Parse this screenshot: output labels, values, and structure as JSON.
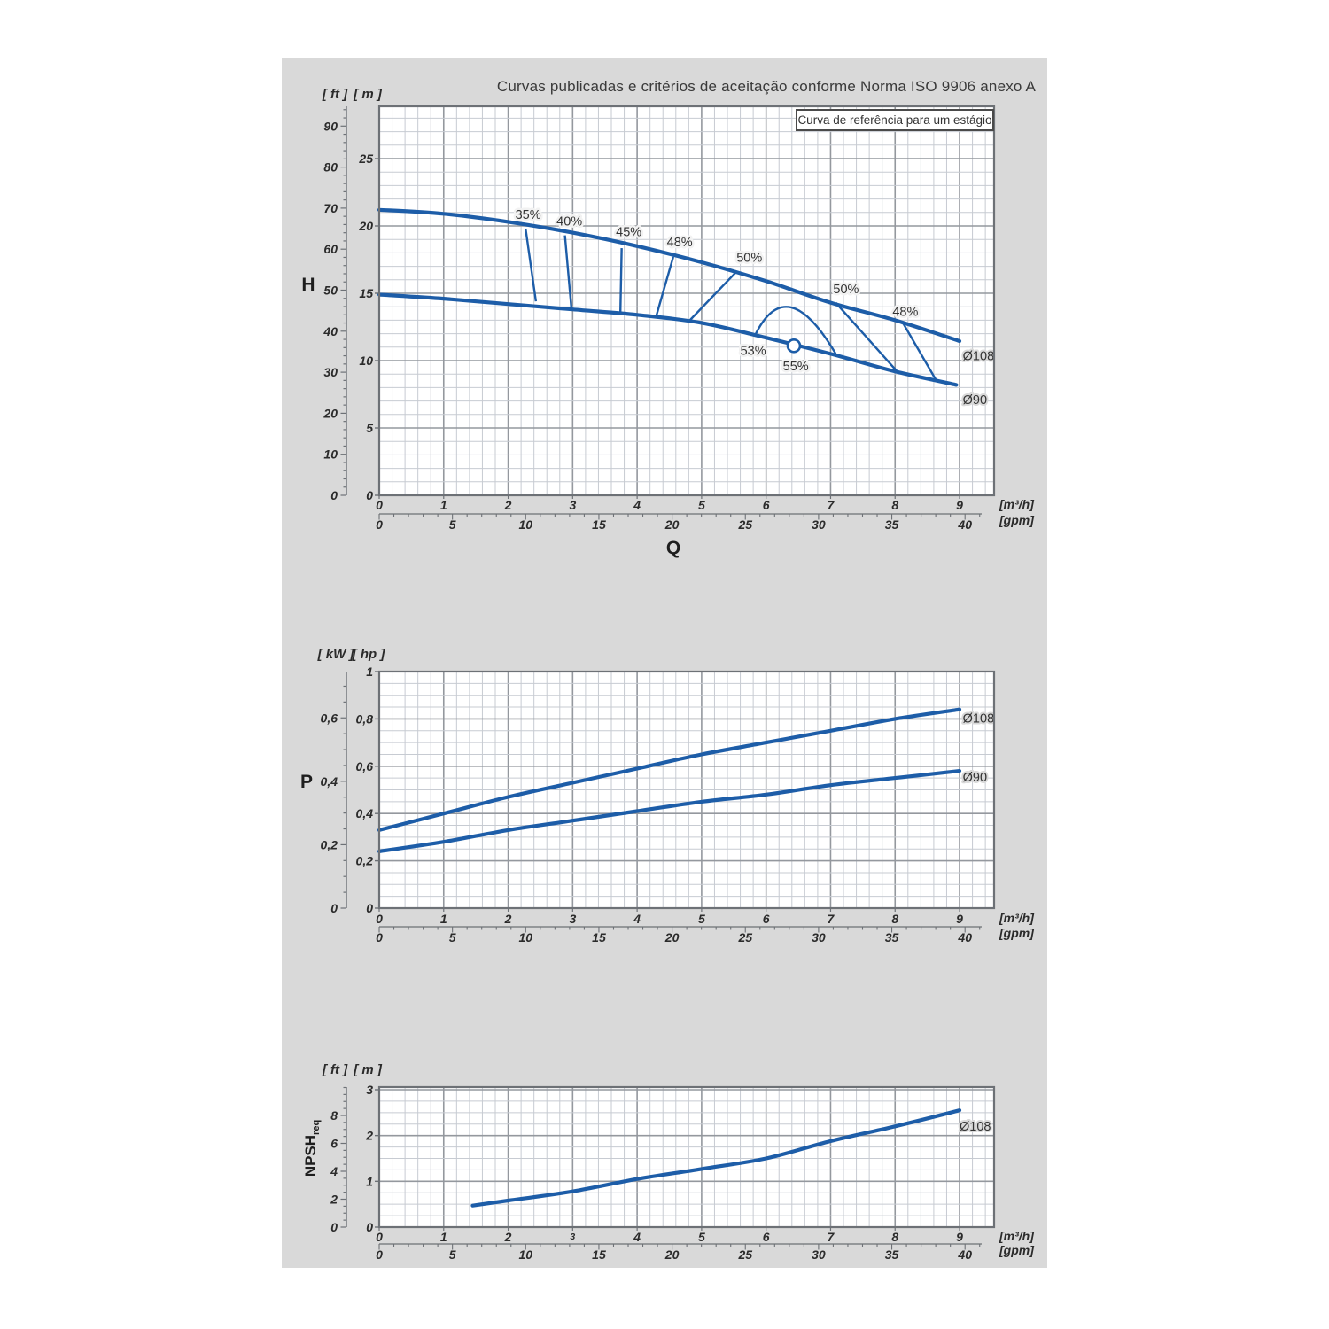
{
  "page": {
    "title": "Curvas publicadas e critérios de aceitação conforme Norma ISO 9906 anexo A",
    "legend": "Curva de referência para um estágio"
  },
  "labels": {
    "head_axis": "H",
    "power_axis": "P",
    "flow_axis": "Q",
    "npsh_main": "NPSH",
    "npsh_sub": "req",
    "head_unit_outer": "[ ft ]",
    "head_unit_inner": "[ m ]",
    "power_unit_outer": "[ kW ]",
    "power_unit_inner": "[ hp ]",
    "npsh_unit_outer": "[ ft ]",
    "npsh_unit_inner": "[ m ]"
  },
  "colors": {
    "curve": "#1d5da8",
    "grid_minor": "#c7cbd2",
    "grid_major": "#94989e",
    "border": "#6d7176",
    "axis": "#6d7176",
    "panel_bg": "#d9d9d9",
    "plot_bg": "#ffffff",
    "text": "#2b2b2b"
  },
  "x_axis": {
    "m3h_unit": "[m³/h]",
    "gpm_unit": "[gpm]",
    "m3h_ticks": [
      [
        0,
        "0"
      ],
      [
        1,
        "1"
      ],
      [
        2,
        "2"
      ],
      [
        3,
        "3"
      ],
      [
        4,
        "4"
      ],
      [
        5,
        "5"
      ],
      [
        6,
        "6"
      ],
      [
        7,
        "7"
      ],
      [
        8,
        "8"
      ],
      [
        9,
        "9"
      ]
    ],
    "gpm_ticks": [
      [
        0,
        "0"
      ],
      [
        5,
        "5"
      ],
      [
        10,
        "10"
      ],
      [
        15,
        "15"
      ],
      [
        20,
        "20"
      ],
      [
        25,
        "25"
      ],
      [
        30,
        "30"
      ],
      [
        35,
        "35"
      ],
      [
        40,
        "40"
      ]
    ]
  },
  "chart_data": [
    {
      "id": "head",
      "type": "line",
      "ylabel": "H [m]",
      "xlabel": "Q [m³/h]",
      "xlim": [
        0,
        9.54
      ],
      "ylim": [
        0,
        28.9
      ],
      "outer_ticks": [
        [
          0,
          "0"
        ],
        [
          10,
          "10"
        ],
        [
          20,
          "20"
        ],
        [
          30,
          "30"
        ],
        [
          40,
          "40"
        ],
        [
          50,
          "50"
        ],
        [
          60,
          "60"
        ],
        [
          70,
          "70"
        ],
        [
          80,
          "80"
        ],
        [
          90,
          "90"
        ]
      ],
      "inner_ticks": [
        [
          0,
          "0"
        ],
        [
          5,
          "5"
        ],
        [
          10,
          "10"
        ],
        [
          15,
          "15"
        ],
        [
          20,
          "20"
        ],
        [
          25,
          "25"
        ]
      ],
      "series": [
        {
          "name": "Ø108",
          "points": [
            [
              0,
              21.2
            ],
            [
              1,
              20.9
            ],
            [
              2,
              20.3
            ],
            [
              3,
              19.5
            ],
            [
              4,
              18.5
            ],
            [
              5,
              17.3
            ],
            [
              6,
              15.9
            ],
            [
              7,
              14.3
            ],
            [
              8,
              13.0
            ],
            [
              9,
              11.45
            ]
          ]
        },
        {
          "name": "Ø90",
          "points": [
            [
              0,
              14.9
            ],
            [
              1,
              14.6
            ],
            [
              2,
              14.2
            ],
            [
              3,
              13.8
            ],
            [
              4,
              13.4
            ],
            [
              5,
              12.8
            ],
            [
              6,
              11.7
            ],
            [
              7,
              10.5
            ],
            [
              8,
              9.2
            ],
            [
              8.95,
              8.2
            ]
          ]
        }
      ],
      "efficiency_lines": [
        {
          "label": "35%",
          "label_at": [
            2.31,
            20.8
          ],
          "from": [
            2.27,
            19.8
          ],
          "to": [
            2.43,
            14.4
          ]
        },
        {
          "label": "40%",
          "label_at": [
            2.95,
            20.3
          ],
          "from": [
            2.88,
            19.3
          ],
          "to": [
            2.98,
            13.9
          ]
        },
        {
          "label": "45%",
          "label_at": [
            3.87,
            19.5
          ],
          "from": [
            3.76,
            18.35
          ],
          "to": [
            3.74,
            13.55
          ]
        },
        {
          "label": "48%",
          "label_at": [
            4.66,
            18.75
          ],
          "from": [
            4.56,
            17.7
          ],
          "to": [
            4.29,
            13.2
          ]
        },
        {
          "label": "50%",
          "label_at": [
            5.74,
            17.6
          ],
          "from": [
            5.52,
            16.5
          ],
          "to": [
            4.81,
            12.96
          ]
        },
        {
          "label": "50%",
          "label_at": [
            7.24,
            15.26
          ],
          "from": [
            7.08,
            14.3
          ],
          "to": [
            8.05,
            9.1
          ]
        },
        {
          "label": "48%",
          "label_at": [
            8.16,
            13.6
          ],
          "from": [
            8.11,
            12.9
          ],
          "to": [
            8.63,
            8.6
          ]
        }
      ],
      "bep": {
        "arc": {
          "from": [
            5.83,
            11.9
          ],
          "control": [
            6.32,
            16.7
          ],
          "to": [
            7.08,
            10.5
          ]
        },
        "marker": [
          6.43,
          11.1
        ],
        "labels": [
          {
            "text": "53%",
            "at": [
              5.8,
              10.7
            ]
          },
          {
            "text": "55%",
            "at": [
              6.46,
              9.54
            ]
          }
        ]
      },
      "end_labels": [
        {
          "text": "Ø108",
          "at": [
            9.05,
            10.3
          ]
        },
        {
          "text": "Ø90",
          "at": [
            9.05,
            7.04
          ]
        }
      ]
    },
    {
      "id": "power",
      "type": "line",
      "ylabel": "P [hp]",
      "xlabel": "Q [m³/h]",
      "xlim": [
        0,
        9.54
      ],
      "ylim": [
        0,
        1.0
      ],
      "outer_ticks": [
        [
          0,
          "0"
        ],
        [
          0.2,
          "0,2"
        ],
        [
          0.4,
          "0,4"
        ],
        [
          0.6,
          "0,6"
        ]
      ],
      "inner_ticks": [
        [
          0,
          "0"
        ],
        [
          0.2,
          "0,2"
        ],
        [
          0.4,
          "0,4"
        ],
        [
          0.6,
          "0,6"
        ],
        [
          0.8,
          "0,8"
        ],
        [
          1,
          "1"
        ]
      ],
      "series": [
        {
          "name": "Ø108",
          "points": [
            [
              0,
              0.33
            ],
            [
              1,
              0.4
            ],
            [
              2,
              0.47
            ],
            [
              3,
              0.53
            ],
            [
              4,
              0.59
            ],
            [
              5,
              0.65
            ],
            [
              6,
              0.7
            ],
            [
              7,
              0.75
            ],
            [
              8,
              0.8
            ],
            [
              9,
              0.84
            ]
          ]
        },
        {
          "name": "Ø90",
          "points": [
            [
              0,
              0.24
            ],
            [
              1,
              0.28
            ],
            [
              2,
              0.33
            ],
            [
              3,
              0.37
            ],
            [
              4,
              0.41
            ],
            [
              5,
              0.45
            ],
            [
              6,
              0.48
            ],
            [
              7,
              0.52
            ],
            [
              8,
              0.55
            ],
            [
              9,
              0.58
            ]
          ]
        }
      ],
      "end_labels": [
        {
          "text": "Ø108",
          "at": [
            9.05,
            0.8
          ]
        },
        {
          "text": "Ø90",
          "at": [
            9.05,
            0.55
          ]
        }
      ]
    },
    {
      "id": "npsh",
      "type": "line",
      "ylabel": "NPSHreq [m]",
      "xlabel": "Q [m³/h]",
      "xlim": [
        0,
        9.54
      ],
      "ylim": [
        0,
        3.06
      ],
      "outer_ticks": [
        [
          0,
          "0"
        ],
        [
          2,
          "2"
        ],
        [
          4,
          "4"
        ],
        [
          6,
          "6"
        ],
        [
          8,
          "8"
        ]
      ],
      "inner_ticks": [
        [
          0,
          "0"
        ],
        [
          1,
          "1"
        ],
        [
          2,
          "2"
        ],
        [
          3,
          "3"
        ]
      ],
      "small_m3h": [
        "3"
      ],
      "series": [
        {
          "name": "Ø108",
          "points": [
            [
              1.45,
              0.47
            ],
            [
              2,
              0.58
            ],
            [
              3,
              0.78
            ],
            [
              4,
              1.05
            ],
            [
              5,
              1.27
            ],
            [
              6,
              1.5
            ],
            [
              7,
              1.88
            ],
            [
              8,
              2.2
            ],
            [
              9,
              2.55
            ]
          ]
        }
      ],
      "end_labels": [
        {
          "text": "Ø108",
          "at": [
            9.0,
            2.19
          ]
        }
      ]
    }
  ]
}
